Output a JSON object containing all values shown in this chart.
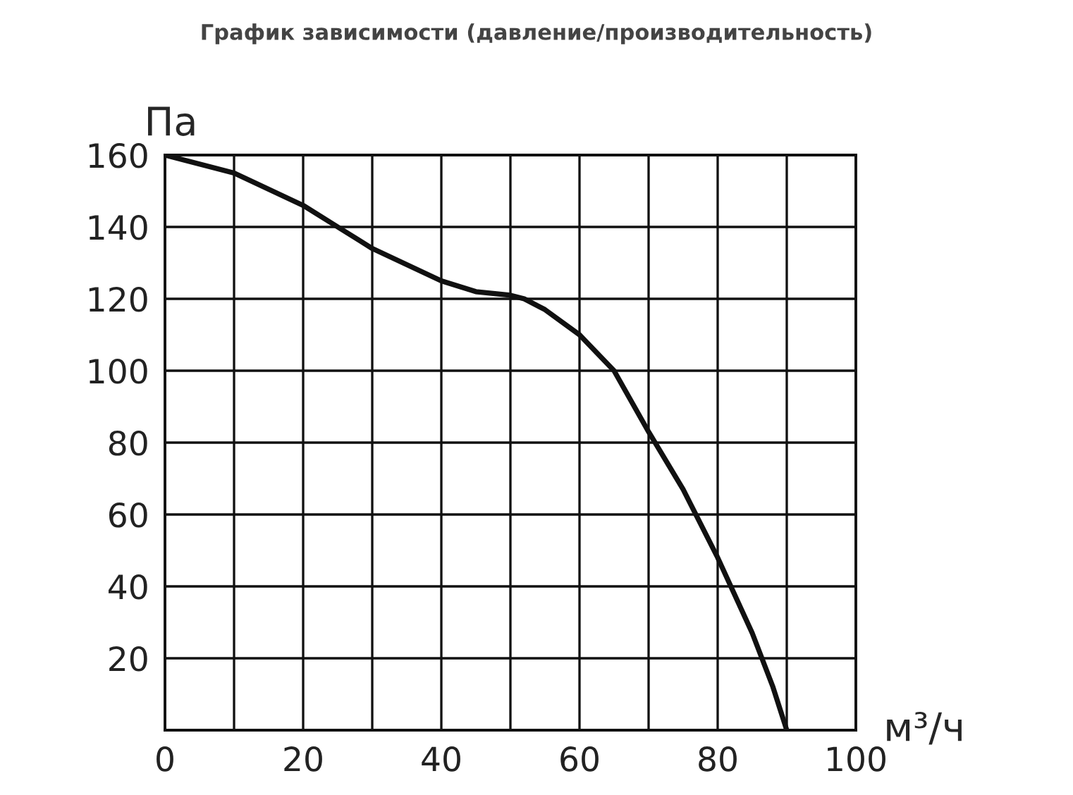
{
  "chart_data": {
    "type": "line",
    "title": "График зависимости (давление/производительность)",
    "xlabel": "м³/ч",
    "ylabel": "Па",
    "x": [
      0,
      10,
      20,
      25,
      30,
      40,
      45,
      50,
      52,
      55,
      60,
      65,
      70,
      75,
      80,
      85,
      88,
      90
    ],
    "series": [
      {
        "color": "#111111",
        "values": [
          160,
          155,
          146,
          140,
          134,
          125,
          122,
          121,
          120,
          117,
          110,
          100,
          83,
          67,
          48,
          27,
          12,
          0
        ]
      }
    ],
    "xlim": [
      0,
      100
    ],
    "ylim": [
      0,
      160
    ],
    "xticks": [
      0,
      {
        "value": 10,
        "label": null
      },
      20,
      {
        "value": 30,
        "label": null
      },
      40,
      {
        "value": 50,
        "label": null
      },
      60,
      {
        "value": 70,
        "label": null
      },
      80,
      {
        "value": 90,
        "label": null
      },
      100
    ],
    "yticks": [
      {
        "value": 0,
        "label": null
      },
      20,
      40,
      60,
      80,
      100,
      120,
      140,
      160
    ],
    "grid": true,
    "marker": "none",
    "line_style": "solid",
    "legend": false
  }
}
